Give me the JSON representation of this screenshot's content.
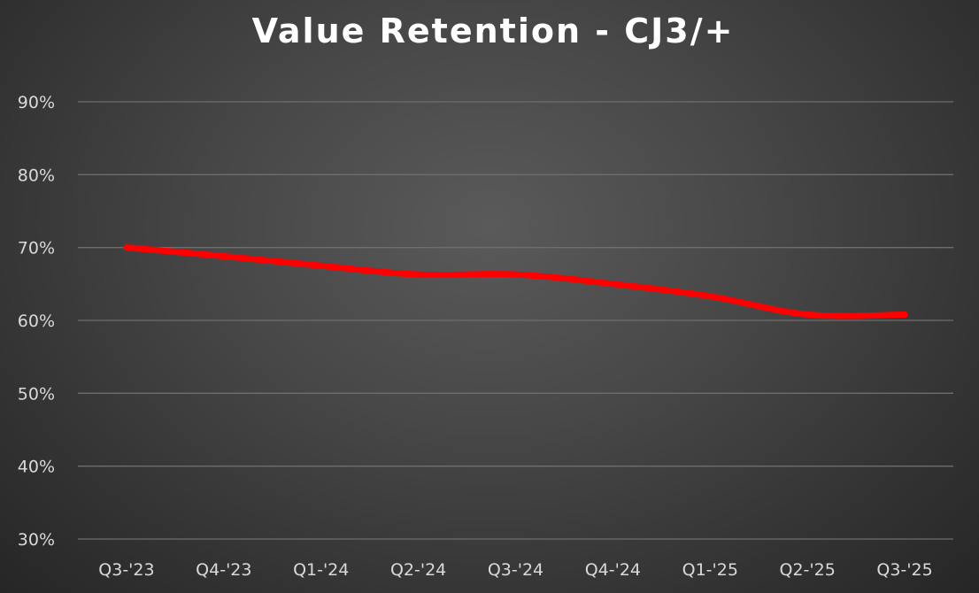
{
  "chart_data": {
    "type": "line",
    "title": "Value Retention - CJ3/+",
    "xlabel": "",
    "ylabel": "",
    "categories": [
      "Q3-'23",
      "Q4-'23",
      "Q1-'24",
      "Q2-'24",
      "Q3-'24",
      "Q4-'24",
      "Q1-'25",
      "Q2-'25",
      "Q3-'25"
    ],
    "series": [
      {
        "values": [
          70.0,
          68.8,
          67.5,
          66.3,
          66.3,
          65.0,
          63.3,
          60.8,
          60.8
        ],
        "color": "#ff0000"
      }
    ],
    "ylim": [
      30,
      90
    ],
    "yticks": [
      "30%",
      "40%",
      "50%",
      "60%",
      "70%",
      "80%",
      "90%"
    ],
    "ytick_values": [
      30,
      40,
      50,
      60,
      70,
      80,
      90
    ],
    "grid": true,
    "legend": "none"
  }
}
